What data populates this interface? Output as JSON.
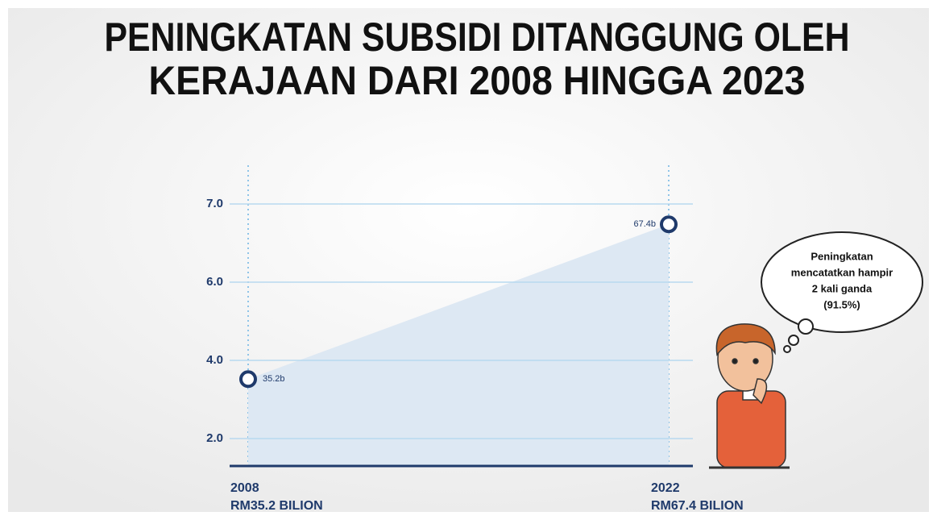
{
  "chart_data": {
    "type": "area",
    "title": [
      "PENINGKATAN SUBSIDI DITANGGUNG OLEH",
      "KERAJAAN DARI 2008 HINGGA 2023"
    ],
    "categories": [
      "2008",
      "2022"
    ],
    "x_sublabels": [
      "RM35.2 BILION",
      "RM67.4 BILION"
    ],
    "values": [
      3.52,
      6.74
    ],
    "value_labels": [
      "35.2b",
      "67.4b"
    ],
    "color": "#1f3a6b",
    "fill": "#dde8f3",
    "ylim": [
      1.3,
      7.5
    ],
    "yticks": [
      {
        "value": 2,
        "label": "2.0"
      },
      {
        "value": 4,
        "label": "4.0"
      },
      {
        "value": 6,
        "label": "6.0"
      },
      {
        "value": 7,
        "label": "7.0"
      }
    ],
    "grid": true,
    "annotation": [
      "Peningkatan",
      "mencatatkan hampir",
      "2 kali ganda",
      "(91.5%)"
    ]
  }
}
